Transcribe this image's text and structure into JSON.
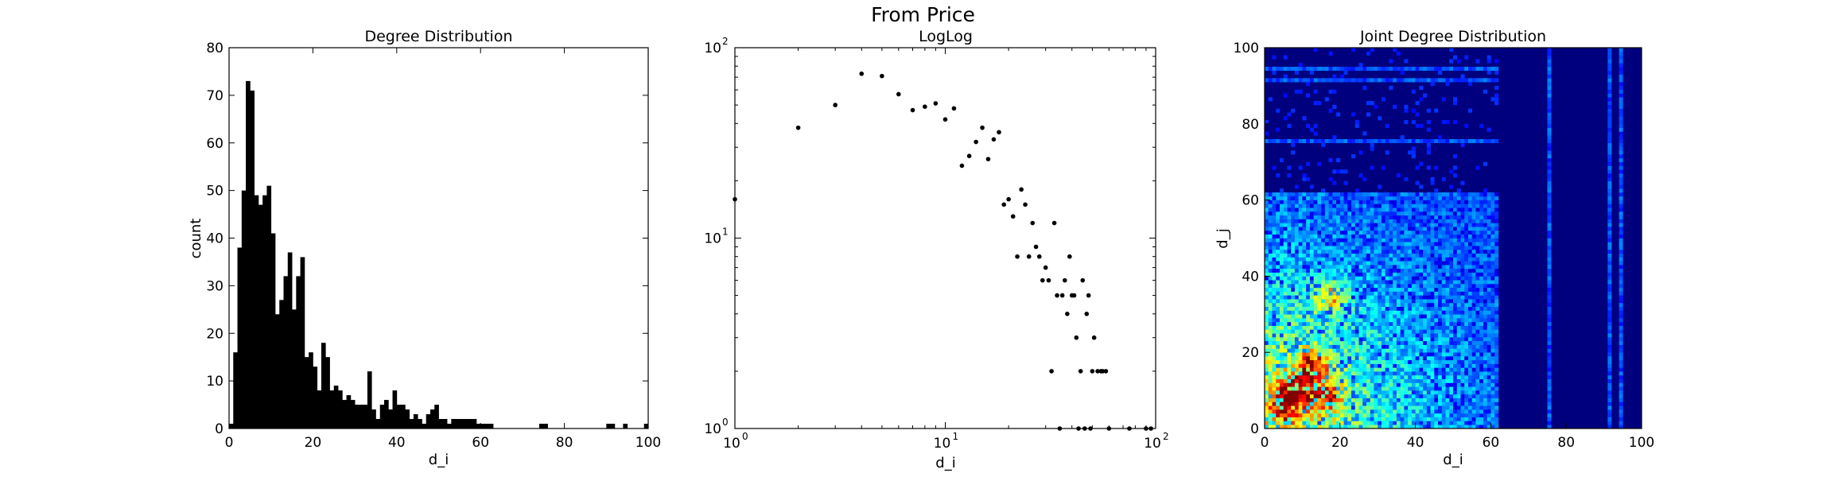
{
  "figure": {
    "suptitle": "From Price"
  },
  "chart_data": [
    {
      "type": "bar",
      "title": "Degree Distribution",
      "xlabel": "d_i",
      "ylabel": "count",
      "xlim": [
        0,
        100
      ],
      "ylim": [
        0,
        80
      ],
      "xticks": [
        0,
        20,
        40,
        60,
        80,
        100
      ],
      "yticks": [
        0,
        10,
        20,
        30,
        40,
        50,
        60,
        70,
        80
      ],
      "bin_width": 1,
      "bins": [
        [
          0,
          1
        ],
        [
          1,
          16
        ],
        [
          2,
          38
        ],
        [
          3,
          50
        ],
        [
          4,
          73
        ],
        [
          5,
          71
        ],
        [
          6,
          49
        ],
        [
          7,
          47
        ],
        [
          8,
          49
        ],
        [
          9,
          51
        ],
        [
          10,
          41
        ],
        [
          11,
          24
        ],
        [
          12,
          27
        ],
        [
          13,
          32
        ],
        [
          14,
          37
        ],
        [
          15,
          25
        ],
        [
          16,
          32
        ],
        [
          17,
          36
        ],
        [
          18,
          15
        ],
        [
          19,
          16
        ],
        [
          20,
          13
        ],
        [
          21,
          8
        ],
        [
          22,
          18
        ],
        [
          23,
          15
        ],
        [
          24,
          8
        ],
        [
          25,
          9
        ],
        [
          26,
          8
        ],
        [
          27,
          6
        ],
        [
          28,
          7
        ],
        [
          29,
          6
        ],
        [
          30,
          5
        ],
        [
          31,
          5
        ],
        [
          32,
          5
        ],
        [
          33,
          12
        ],
        [
          34,
          4
        ],
        [
          35,
          2
        ],
        [
          36,
          5
        ],
        [
          37,
          6
        ],
        [
          38,
          4
        ],
        [
          39,
          8
        ],
        [
          40,
          5
        ],
        [
          41,
          5
        ],
        [
          42,
          4
        ],
        [
          43,
          2
        ],
        [
          44,
          3
        ],
        [
          45,
          2
        ],
        [
          46,
          1
        ],
        [
          47,
          3
        ],
        [
          48,
          4
        ],
        [
          49,
          5
        ],
        [
          50,
          2
        ],
        [
          51,
          2
        ],
        [
          52,
          1
        ],
        [
          53,
          2
        ],
        [
          54,
          2
        ],
        [
          55,
          2
        ],
        [
          56,
          2
        ],
        [
          57,
          2
        ],
        [
          58,
          2
        ],
        [
          59,
          1
        ],
        [
          60,
          1
        ],
        [
          61,
          1
        ],
        [
          62,
          1
        ],
        [
          74,
          1
        ],
        [
          75,
          1
        ],
        [
          90,
          1
        ],
        [
          91,
          1
        ],
        [
          94,
          1
        ],
        [
          99,
          1
        ]
      ]
    },
    {
      "type": "scatter",
      "title": "LogLog",
      "xlabel": "d_i",
      "xscale": "log",
      "yscale": "log",
      "xlim": [
        1,
        100
      ],
      "ylim": [
        1,
        100
      ],
      "xticks": [
        {
          "value": 1,
          "base": "10",
          "exp": "0"
        },
        {
          "value": 10,
          "base": "10",
          "exp": "1"
        },
        {
          "value": 100,
          "base": "10",
          "exp": "2"
        }
      ],
      "yticks": [
        {
          "value": 1,
          "base": "10",
          "exp": "0"
        },
        {
          "value": 10,
          "base": "10",
          "exp": "1"
        },
        {
          "value": 100,
          "base": "10",
          "exp": "2"
        }
      ],
      "points": [
        [
          1,
          16
        ],
        [
          2,
          38
        ],
        [
          3,
          50
        ],
        [
          4,
          73
        ],
        [
          5,
          71
        ],
        [
          6,
          57
        ],
        [
          7,
          47
        ],
        [
          8,
          49
        ],
        [
          9,
          51
        ],
        [
          10,
          42
        ],
        [
          11,
          48
        ],
        [
          12,
          24
        ],
        [
          13,
          27
        ],
        [
          14,
          32
        ],
        [
          15,
          38
        ],
        [
          16,
          26
        ],
        [
          17,
          33
        ],
        [
          18,
          36
        ],
        [
          19,
          15
        ],
        [
          20,
          16
        ],
        [
          21,
          13
        ],
        [
          22,
          8
        ],
        [
          23,
          18
        ],
        [
          24,
          15
        ],
        [
          25,
          8
        ],
        [
          26,
          12
        ],
        [
          27,
          9
        ],
        [
          28,
          8
        ],
        [
          29,
          6
        ],
        [
          30,
          7
        ],
        [
          31,
          6
        ],
        [
          32,
          2
        ],
        [
          33,
          12
        ],
        [
          34,
          5
        ],
        [
          36,
          5
        ],
        [
          37,
          6
        ],
        [
          38,
          4
        ],
        [
          39,
          8
        ],
        [
          40,
          5
        ],
        [
          41,
          5
        ],
        [
          42,
          3
        ],
        [
          44,
          2
        ],
        [
          45,
          6
        ],
        [
          47,
          4
        ],
        [
          48,
          5
        ],
        [
          50,
          2
        ],
        [
          51,
          3
        ],
        [
          53,
          2
        ],
        [
          55,
          2
        ],
        [
          56,
          2
        ],
        [
          58,
          2
        ],
        [
          35,
          1
        ],
        [
          43,
          1
        ],
        [
          46,
          1
        ],
        [
          49,
          1
        ],
        [
          60,
          1
        ],
        [
          75,
          1
        ],
        [
          90,
          1
        ],
        [
          95,
          1
        ]
      ]
    },
    {
      "type": "heatmap",
      "title": "Joint Degree Distribution",
      "xlabel": "d_i",
      "ylabel": "d_j",
      "xlim": [
        0,
        100
      ],
      "ylim": [
        0,
        100
      ],
      "xticks": [
        0,
        20,
        40,
        60,
        80,
        100
      ],
      "yticks": [
        0,
        20,
        40,
        60,
        80,
        100
      ],
      "colormap": "jet",
      "background_color": "#00007f",
      "grid_bins": 100,
      "value_range": [
        0,
        1
      ],
      "hotspots": [
        {
          "x": 8,
          "y": 10,
          "intensity": 0.6
        },
        {
          "x": 12,
          "y": 16,
          "intensity": 0.55
        },
        {
          "x": 16,
          "y": 8,
          "intensity": 0.5
        },
        {
          "x": 17,
          "y": 34,
          "intensity": 0.45
        },
        {
          "x": 5,
          "y": 5,
          "intensity": 0.5
        }
      ],
      "active_region_max": 62,
      "stripe_degrees": [
        91,
        94,
        75
      ]
    }
  ]
}
